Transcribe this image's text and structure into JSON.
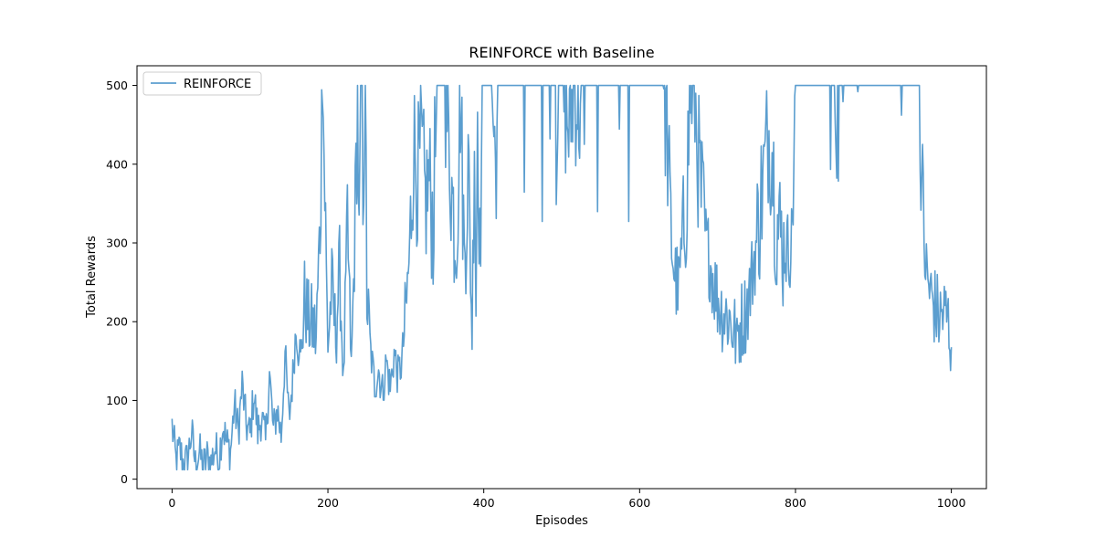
{
  "chart_data": {
    "type": "line",
    "title": "REINFORCE with Baseline",
    "xlabel": "Episodes",
    "ylabel": "Total Rewards",
    "xlim": [
      -45,
      1045
    ],
    "ylim": [
      -12,
      525
    ],
    "xticks": [
      0,
      200,
      400,
      600,
      800,
      1000
    ],
    "yticks": [
      0,
      100,
      200,
      300,
      400,
      500
    ],
    "grid": false,
    "legend_position": "top-left",
    "series": [
      {
        "name": "REINFORCE",
        "color": "#5b9ecf",
        "anchors": [
          [
            0,
            68
          ],
          [
            5,
            22
          ],
          [
            10,
            38
          ],
          [
            15,
            17
          ],
          [
            20,
            25
          ],
          [
            25,
            60
          ],
          [
            30,
            18
          ],
          [
            35,
            35
          ],
          [
            40,
            15
          ],
          [
            45,
            28
          ],
          [
            50,
            20
          ],
          [
            55,
            40
          ],
          [
            60,
            25
          ],
          [
            65,
            70
          ],
          [
            70,
            45
          ],
          [
            75,
            35
          ],
          [
            80,
            95
          ],
          [
            85,
            60
          ],
          [
            90,
            120
          ],
          [
            95,
            70
          ],
          [
            100,
            55
          ],
          [
            105,
            110
          ],
          [
            110,
            60
          ],
          [
            115,
            80
          ],
          [
            120,
            45
          ],
          [
            125,
            135
          ],
          [
            130,
            60
          ],
          [
            135,
            90
          ],
          [
            140,
            55
          ],
          [
            145,
            160
          ],
          [
            150,
            75
          ],
          [
            155,
            130
          ],
          [
            160,
            210
          ],
          [
            165,
            150
          ],
          [
            170,
            230
          ],
          [
            175,
            200
          ],
          [
            180,
            195
          ],
          [
            185,
            180
          ],
          [
            190,
            330
          ],
          [
            193,
            500
          ],
          [
            195,
            420
          ],
          [
            198,
            260
          ],
          [
            200,
            170
          ],
          [
            205,
            245
          ],
          [
            210,
            180
          ],
          [
            215,
            270
          ],
          [
            220,
            120
          ],
          [
            225,
            320
          ],
          [
            230,
            140
          ],
          [
            235,
            320
          ],
          [
            238,
            500
          ],
          [
            240,
            300
          ],
          [
            243,
            500
          ],
          [
            245,
            380
          ],
          [
            248,
            500
          ],
          [
            250,
            230
          ],
          [
            255,
            160
          ],
          [
            260,
            120
          ],
          [
            265,
            140
          ],
          [
            270,
            110
          ],
          [
            275,
            150
          ],
          [
            280,
            115
          ],
          [
            285,
            160
          ],
          [
            290,
            130
          ],
          [
            295,
            150
          ],
          [
            300,
            210
          ],
          [
            305,
            290
          ],
          [
            310,
            430
          ],
          [
            315,
            380
          ],
          [
            320,
            420
          ],
          [
            325,
            350
          ],
          [
            330,
            380
          ],
          [
            335,
            320
          ],
          [
            340,
            500
          ],
          [
            350,
            500
          ],
          [
            355,
            430
          ],
          [
            360,
            350
          ],
          [
            365,
            300
          ],
          [
            370,
            490
          ],
          [
            375,
            280
          ],
          [
            380,
            400
          ],
          [
            385,
            180
          ],
          [
            388,
            460
          ],
          [
            390,
            220
          ],
          [
            392,
            480
          ],
          [
            395,
            300
          ],
          [
            398,
            450
          ],
          [
            400,
            500
          ],
          [
            410,
            500
          ],
          [
            415,
            400
          ],
          [
            420,
            500
          ],
          [
            450,
            500
          ],
          [
            500,
            500
          ],
          [
            510,
            440
          ],
          [
            515,
            500
          ],
          [
            525,
            460
          ],
          [
            530,
            500
          ],
          [
            600,
            500
          ],
          [
            630,
            500
          ],
          [
            635,
            450
          ],
          [
            640,
            310
          ],
          [
            645,
            260
          ],
          [
            650,
            240
          ],
          [
            655,
            300
          ],
          [
            660,
            360
          ],
          [
            665,
            490
          ],
          [
            670,
            500
          ],
          [
            675,
            410
          ],
          [
            680,
            350
          ],
          [
            685,
            300
          ],
          [
            690,
            280
          ],
          [
            695,
            250
          ],
          [
            700,
            230
          ],
          [
            705,
            215
          ],
          [
            710,
            210
          ],
          [
            715,
            205
          ],
          [
            720,
            190
          ],
          [
            725,
            180
          ],
          [
            730,
            200
          ],
          [
            735,
            210
          ],
          [
            740,
            230
          ],
          [
            745,
            265
          ],
          [
            750,
            300
          ],
          [
            755,
            350
          ],
          [
            760,
            390
          ],
          [
            765,
            440
          ],
          [
            770,
            420
          ],
          [
            775,
            330
          ],
          [
            780,
            310
          ],
          [
            785,
            300
          ],
          [
            790,
            290
          ],
          [
            795,
            300
          ],
          [
            800,
            500
          ],
          [
            810,
            500
          ],
          [
            850,
            500
          ],
          [
            855,
            450
          ],
          [
            860,
            500
          ],
          [
            900,
            500
          ],
          [
            950,
            500
          ],
          [
            960,
            500
          ],
          [
            962,
            370
          ],
          [
            965,
            300
          ],
          [
            968,
            260
          ],
          [
            972,
            240
          ],
          [
            975,
            230
          ],
          [
            980,
            215
          ],
          [
            985,
            205
          ],
          [
            990,
            210
          ],
          [
            995,
            205
          ],
          [
            1000,
            175
          ]
        ]
      }
    ]
  }
}
